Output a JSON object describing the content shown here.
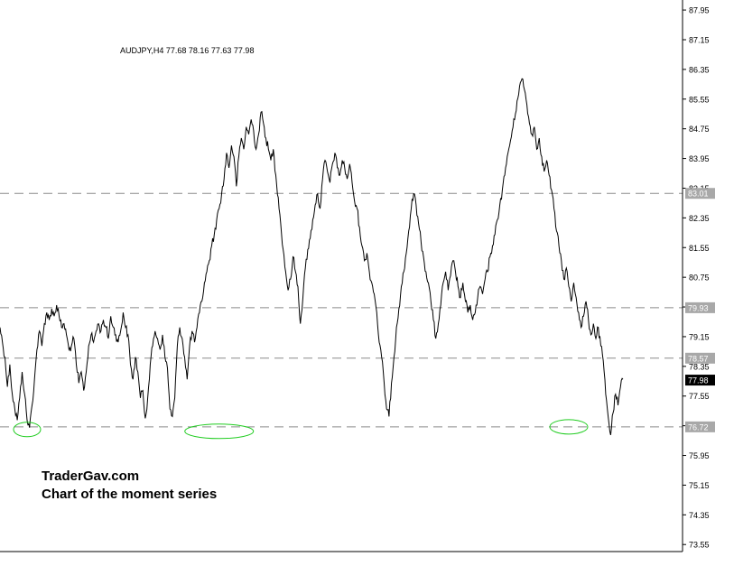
{
  "chart_data": {
    "type": "line",
    "title": "",
    "instrument_info": "AUDJPY,H4  77.68 78.16 77.63 77.98",
    "watermark_line1": "TraderGav.com",
    "watermark_line2": "Chart of the moment series",
    "y_tick_labels": [
      "87.95",
      "87.15",
      "86.35",
      "85.55",
      "84.75",
      "83.95",
      "83.15",
      "82.35",
      "81.55",
      "80.75",
      "79.95",
      "79.15",
      "78.35",
      "77.55",
      "76.75",
      "75.95",
      "75.15",
      "74.35",
      "73.55"
    ],
    "ylim": [
      73.3,
      88.3
    ],
    "current_price": {
      "value": 77.98,
      "label": "77.98"
    },
    "horizontal_levels": [
      {
        "value": 83.01,
        "label": "83.01"
      },
      {
        "value": 79.93,
        "label": "79.93"
      },
      {
        "value": 78.57,
        "label": "78.57"
      },
      {
        "value": 76.72,
        "label": "76.72"
      }
    ],
    "support_touches": [
      {
        "index": 11,
        "value": 76.65
      },
      {
        "index": 89,
        "value": 76.6
      },
      {
        "index": 231,
        "value": 76.72
      },
      {
        "index": 413,
        "value": 76.65
      }
    ],
    "grid": false,
    "series": [
      {
        "values": [
          79.4,
          79.0,
          78.6,
          77.8,
          78.4,
          77.6,
          77.2,
          76.9,
          77.5,
          78.2,
          77.6,
          76.9,
          76.7,
          77.3,
          78.0,
          78.8,
          79.3,
          78.9,
          79.5,
          79.8,
          79.6,
          79.9,
          79.7,
          80.0,
          79.7,
          79.4,
          79.5,
          79.2,
          78.8,
          78.9,
          79.1,
          78.4,
          77.9,
          78.2,
          77.7,
          78.2,
          78.9,
          79.2,
          79.0,
          79.3,
          79.5,
          79.3,
          79.6,
          79.4,
          79.1,
          79.7,
          79.4,
          79.2,
          79.0,
          79.3,
          79.8,
          79.4,
          79.2,
          78.4,
          78.0,
          78.6,
          78.2,
          77.5,
          77.7,
          76.95,
          77.5,
          78.4,
          78.9,
          79.3,
          79.1,
          78.8,
          79.2,
          78.6,
          78.3,
          77.2,
          77.0,
          77.5,
          78.9,
          79.4,
          79.1,
          78.6,
          78.0,
          78.9,
          79.3,
          79.0,
          79.4,
          79.8,
          80.1,
          80.6,
          80.9,
          81.2,
          81.6,
          81.9,
          82.3,
          82.6,
          83.0,
          83.4,
          84.1,
          83.7,
          84.3,
          84.0,
          83.2,
          84.0,
          84.5,
          84.2,
          84.8,
          84.6,
          85.0,
          84.7,
          84.2,
          84.6,
          85.2,
          84.9,
          84.5,
          84.2,
          83.9,
          84.2,
          83.5,
          82.9,
          82.2,
          81.5,
          80.9,
          80.4,
          80.7,
          81.3,
          80.9,
          80.5,
          79.5,
          80.2,
          81.0,
          81.5,
          81.8,
          82.3,
          82.7,
          83.0,
          82.6,
          83.4,
          83.9,
          83.6,
          83.3,
          83.8,
          84.1,
          83.7,
          83.5,
          83.9,
          83.7,
          83.4,
          83.8,
          83.3,
          82.8,
          82.6,
          82.1,
          81.6,
          81.2,
          81.4,
          80.9,
          80.6,
          80.3,
          79.8,
          79.0,
          78.6,
          77.9,
          77.2,
          77.0,
          77.9,
          78.6,
          79.4,
          79.9,
          80.5,
          80.9,
          81.4,
          82.0,
          82.6,
          83.0,
          82.7,
          82.2,
          81.7,
          81.3,
          80.9,
          80.6,
          80.1,
          79.6,
          79.1,
          79.5,
          80.0,
          80.6,
          80.9,
          80.4,
          80.8,
          81.2,
          80.9,
          80.5,
          80.2,
          80.6,
          80.1,
          79.8,
          80.0,
          79.6,
          79.8,
          80.2,
          80.5,
          80.3,
          80.7,
          80.9,
          81.3,
          81.6,
          81.9,
          82.3,
          82.7,
          83.1,
          83.5,
          84.0,
          84.3,
          84.7,
          85.0,
          85.5,
          85.9,
          86.1,
          85.8,
          85.4,
          84.9,
          84.6,
          84.8,
          84.2,
          84.5,
          84.0,
          83.6,
          83.9,
          83.5,
          83.1,
          82.6,
          82.0,
          81.6,
          81.2,
          80.7,
          81.0,
          80.5,
          80.1,
          80.6,
          80.2,
          79.8,
          79.4,
          79.7,
          80.1,
          79.6,
          79.2,
          79.5,
          79.1,
          79.4,
          78.9,
          78.5,
          77.6,
          77.0,
          76.5,
          77.1,
          77.6,
          77.3,
          77.8,
          78.0
        ]
      }
    ]
  }
}
